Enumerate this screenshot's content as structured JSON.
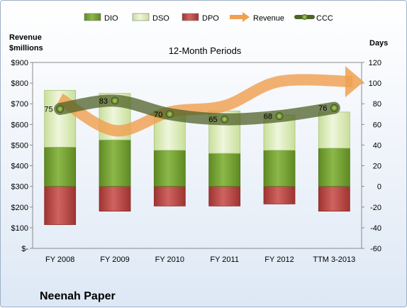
{
  "chart_data": {
    "type": "bar",
    "title": "12-Month Periods",
    "company": "Neenah Paper",
    "ylabel_left": [
      "Revenue",
      "$millions"
    ],
    "ylabel_right": "Days",
    "categories": [
      "FY 2008",
      "FY 2009",
      "FY 2010",
      "FY 2011",
      "FY 2012",
      "TTM 3-2013"
    ],
    "left_axis": {
      "ylim": [
        0,
        900
      ],
      "ticks": [
        "$-",
        "$100",
        "$200",
        "$300",
        "$400",
        "$500",
        "$600",
        "$700",
        "$800",
        "$900"
      ]
    },
    "right_axis": {
      "ylim": [
        -60,
        120
      ],
      "ticks": [
        "-60",
        "-40",
        "-20",
        "0",
        "20",
        "40",
        "60",
        "80",
        "100",
        "120"
      ]
    },
    "legend_position": "top",
    "series": [
      {
        "name": "DIO",
        "axis": "right",
        "kind": "stacked-bar",
        "color": "#77a033",
        "values": [
          38,
          45,
          35,
          32,
          35,
          37
        ]
      },
      {
        "name": "DSO",
        "axis": "right",
        "kind": "stacked-bar",
        "color": "#d9eab5",
        "values": [
          55,
          45,
          38,
          41,
          34,
          35
        ]
      },
      {
        "name": "DPO",
        "axis": "right",
        "kind": "negative-bar",
        "color": "#c0504d",
        "values": [
          -37,
          -24,
          -19,
          -19,
          -17,
          -24
        ]
      },
      {
        "name": "Revenue",
        "axis": "left",
        "kind": "arrow-line",
        "color": "#f0a050",
        "values": [
          725,
          570,
          660,
          690,
          808,
          800
        ]
      },
      {
        "name": "CCC",
        "axis": "right",
        "kind": "line",
        "color": "#4f6228",
        "values": [
          75,
          83,
          70,
          65,
          68,
          76
        ],
        "labels": [
          "75",
          "83",
          "70",
          "65",
          "68",
          "76"
        ]
      }
    ]
  }
}
